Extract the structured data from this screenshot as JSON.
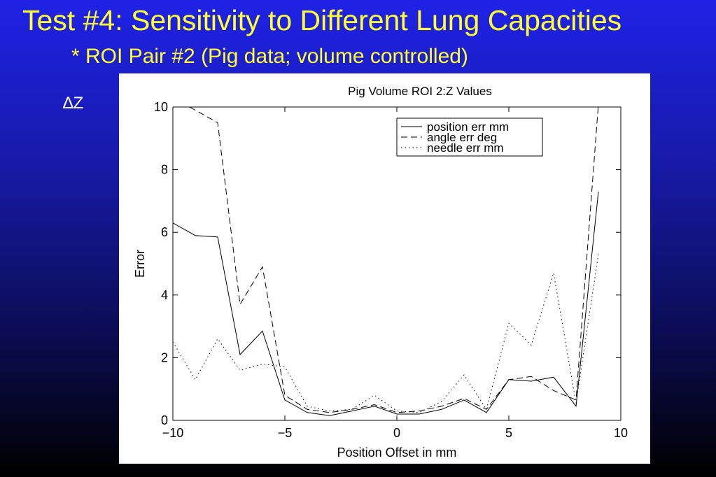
{
  "slide": {
    "title": "Test #4:  Sensitivity to Different Lung Capacities",
    "subtitle": "* ROI Pair #2 (Pig data; volume controlled)",
    "delta_label": "∆Z"
  },
  "chart_data": {
    "type": "line",
    "title": "Pig Volume ROI 2:Z Values",
    "xlabel": "Position Offset in mm",
    "ylabel": "Error",
    "xlim": [
      -10,
      10
    ],
    "ylim": [
      0,
      10
    ],
    "xticks": [
      -10,
      -5,
      0,
      5,
      10
    ],
    "xtick_labels": [
      "−10",
      "−5",
      "0",
      "5",
      "10"
    ],
    "yticks": [
      0,
      2,
      4,
      6,
      8,
      10
    ],
    "ytick_labels": [
      "0",
      "2",
      "4",
      "6",
      "8",
      "10"
    ],
    "grid": false,
    "legend_position": "top-right",
    "x": [
      -10,
      -9,
      -8,
      -7,
      -6,
      -5,
      -4,
      -3,
      -2,
      -1,
      0,
      1,
      2,
      3,
      4,
      5,
      6,
      7,
      8,
      9
    ],
    "series": [
      {
        "name": "position err mm",
        "style": "solid",
        "values": [
          6.3,
          5.9,
          5.85,
          2.1,
          2.85,
          0.65,
          0.25,
          0.15,
          0.3,
          0.45,
          0.2,
          0.2,
          0.35,
          0.65,
          0.25,
          1.3,
          1.25,
          1.38,
          0.45,
          7.3
        ]
      },
      {
        "name": "angle err deg",
        "style": "dashed",
        "values": [
          10.3,
          9.9,
          9.5,
          3.7,
          4.9,
          0.8,
          0.35,
          0.25,
          0.35,
          0.5,
          0.25,
          0.3,
          0.45,
          0.7,
          0.35,
          1.3,
          1.4,
          0.95,
          0.65,
          10.1
        ]
      },
      {
        "name": "needle err mm",
        "style": "dotted",
        "values": [
          2.5,
          1.3,
          2.6,
          1.6,
          1.8,
          1.7,
          0.45,
          0.3,
          0.35,
          0.8,
          0.3,
          0.25,
          0.6,
          1.45,
          0.35,
          3.1,
          2.4,
          4.7,
          0.55,
          5.3
        ]
      }
    ]
  }
}
